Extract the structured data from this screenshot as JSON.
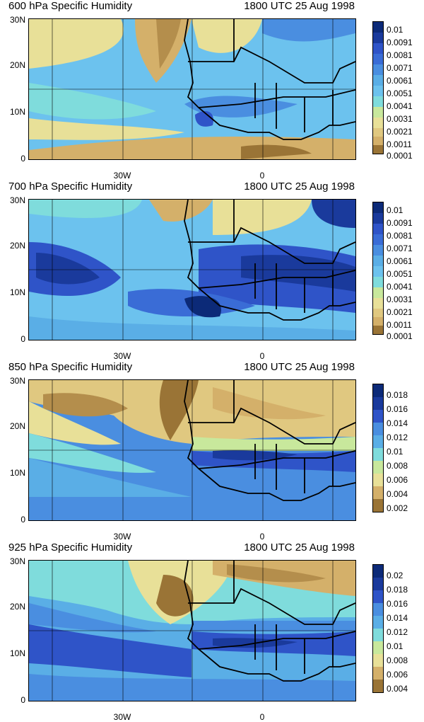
{
  "panels": [
    {
      "title_left": "600 hPa Specific Humidity",
      "title_right": "1800 UTC 25 Aug 1998",
      "colorbar_labels": [
        "0.01",
        "0.0091",
        "0.0081",
        "0.0071",
        "0.0061",
        "0.0051",
        "0.0041",
        "0.0031",
        "0.0021",
        "0.0011",
        "0.0001"
      ]
    },
    {
      "title_left": "700 hPa Specific Humidity",
      "title_right": "1800 UTC 25 Aug 1998",
      "colorbar_labels": [
        "0.01",
        "0.0091",
        "0.0081",
        "0.0071",
        "0.0061",
        "0.0051",
        "0.0041",
        "0.0031",
        "0.0021",
        "0.0011",
        "0.0001"
      ]
    },
    {
      "title_left": "850 hPa Specific Humidity",
      "title_right": "1800 UTC 25 Aug 1998",
      "colorbar_labels": [
        "0.018",
        "0.016",
        "0.014",
        "0.012",
        "0.01",
        "0.008",
        "0.006",
        "0.004",
        "0.002"
      ]
    },
    {
      "title_left": "925 hPa Specific Humidity",
      "title_right": "1800 UTC 25 Aug 1998",
      "colorbar_labels": [
        "0.02",
        "0.018",
        "0.016",
        "0.014",
        "0.012",
        "0.01",
        "0.008",
        "0.006",
        "0.004"
      ]
    }
  ],
  "y_axis_labels": [
    "30N",
    "20N",
    "10N",
    "0"
  ],
  "x_axis_labels": [
    "30W",
    "0"
  ],
  "colors": {
    "very_moist": "#0c2a78",
    "moist": "#2f54c8",
    "mid_blue": "#4a8ee0",
    "light_blue": "#6cc2ee",
    "cyan": "#7fdcdc",
    "pale_green": "#c8e89c",
    "pale_yellow": "#e8e098",
    "tan": "#d4b06a",
    "brown": "#9a7436"
  }
}
